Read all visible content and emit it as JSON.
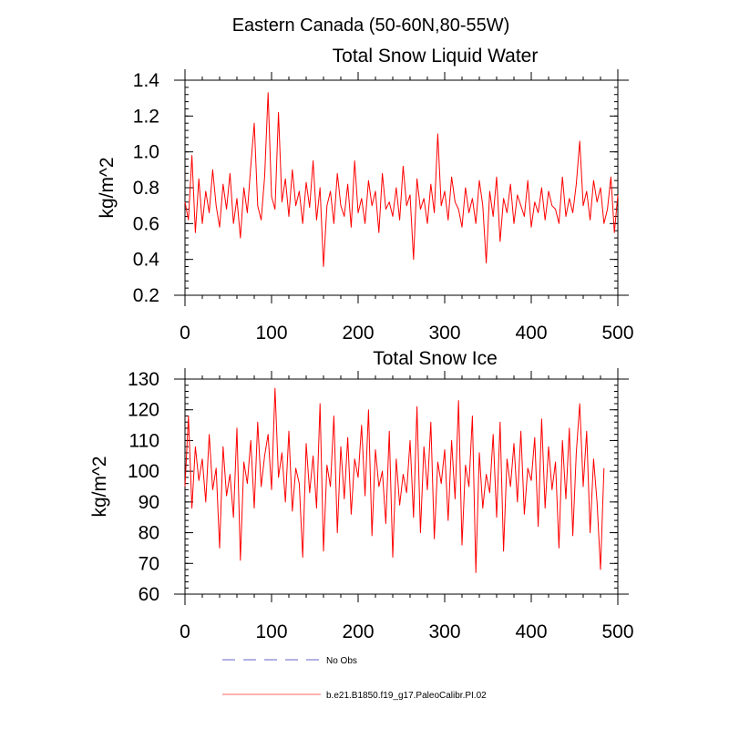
{
  "figure": {
    "main_title": "Eastern Canada (50-60N,80-55W)",
    "legend": [
      {
        "label": "No Obs",
        "color": "#9999dd",
        "style": "dashed"
      },
      {
        "label": "b.e21.B1850.f19_g17.PaleoCalibr.PI.02",
        "color": "#ff0000",
        "style": "solid"
      }
    ]
  },
  "chart_data": [
    {
      "type": "line",
      "title": "Total Snow Liquid Water",
      "xlabel": "",
      "ylabel": "kg/m^2",
      "xlim": [
        0,
        500
      ],
      "ylim": [
        0.2,
        1.4
      ],
      "xticks": [
        0,
        100,
        200,
        300,
        400,
        500
      ],
      "xtick_labels": [
        "0",
        "100",
        "200",
        "300",
        "400",
        "500"
      ],
      "yticks": [
        0.2,
        0.4,
        0.6,
        0.8,
        1.0,
        1.2,
        1.4
      ],
      "ytick_labels": [
        "0.2",
        "0.4",
        "0.6",
        "0.8",
        "1.0",
        "1.2",
        "1.4"
      ],
      "series": [
        {
          "name": "b.e21.B1850.f19_g17.PaleoCalibr.PI.02",
          "color": "#ff0000",
          "x_start": 0,
          "x_step": 4,
          "values": [
            0.72,
            0.62,
            0.98,
            0.55,
            0.85,
            0.6,
            0.78,
            0.66,
            0.9,
            0.7,
            0.58,
            0.82,
            0.68,
            0.88,
            0.6,
            0.74,
            0.52,
            0.8,
            0.66,
            0.92,
            1.16,
            0.7,
            0.62,
            0.86,
            1.33,
            0.75,
            0.68,
            1.22,
            0.72,
            0.85,
            0.64,
            0.9,
            0.7,
            0.78,
            0.6,
            0.83,
            0.69,
            0.95,
            0.62,
            0.8,
            0.36,
            0.7,
            0.78,
            0.6,
            0.88,
            0.7,
            0.64,
            0.82,
            0.58,
            0.95,
            0.66,
            0.74,
            0.6,
            0.84,
            0.7,
            0.78,
            0.55,
            0.88,
            0.68,
            0.72,
            0.64,
            0.8,
            0.62,
            0.92,
            0.7,
            0.76,
            0.4,
            0.85,
            0.68,
            0.74,
            0.6,
            0.82,
            0.66,
            1.1,
            0.7,
            0.78,
            0.62,
            0.86,
            0.72,
            0.68,
            0.58,
            0.8,
            0.66,
            0.74,
            0.6,
            0.84,
            0.7,
            0.38,
            0.78,
            0.64,
            0.86,
            0.5,
            0.74,
            0.66,
            0.82,
            0.6,
            0.76,
            0.7,
            0.64,
            0.84,
            0.58,
            0.72,
            0.66,
            0.8,
            0.62,
            0.78,
            0.7,
            0.68,
            0.6,
            0.86,
            0.64,
            0.74,
            0.66,
            0.82,
            1.06,
            0.7,
            0.78,
            0.62,
            0.84,
            0.72,
            0.8,
            0.6,
            0.68,
            0.86,
            0.55,
            0.76
          ]
        }
      ]
    },
    {
      "type": "line",
      "title": "Total Snow Ice",
      "xlabel": "",
      "ylabel": "kg/m^2",
      "xlim": [
        0,
        500
      ],
      "ylim": [
        60,
        130
      ],
      "xticks": [
        0,
        100,
        200,
        300,
        400,
        500
      ],
      "xtick_labels": [
        "0",
        "100",
        "200",
        "300",
        "400",
        "500"
      ],
      "yticks": [
        60,
        70,
        80,
        90,
        100,
        110,
        120,
        130
      ],
      "ytick_labels": [
        "60",
        "70",
        "80",
        "90",
        "100",
        "110",
        "120",
        "130"
      ],
      "series": [
        {
          "name": "b.e21.B1850.f19_g17.PaleoCalibr.PI.02",
          "color": "#ff0000",
          "x_start": 0,
          "x_step": 4,
          "values": [
            95,
            118,
            88,
            108,
            97,
            104,
            90,
            112,
            94,
            101,
            75,
            108,
            92,
            99,
            85,
            114,
            71,
            103,
            96,
            110,
            88,
            116,
            95,
            105,
            112,
            94,
            127,
            98,
            106,
            90,
            113,
            87,
            101,
            96,
            72,
            109,
            93,
            105,
            88,
            122,
            74,
            102,
            95,
            118,
            80,
            108,
            91,
            111,
            86,
            104,
            98,
            115,
            92,
            120,
            79,
            107,
            95,
            100,
            83,
            113,
            72,
            104,
            89,
            99,
            93,
            110,
            85,
            121,
            80,
            108,
            94,
            116,
            78,
            103,
            96,
            107,
            84,
            110,
            91,
            123,
            76,
            102,
            95,
            118,
            67,
            106,
            88,
            99,
            93,
            112,
            85,
            116,
            74,
            104,
            95,
            109,
            90,
            113,
            86,
            101,
            97,
            111,
            82,
            117,
            88,
            108,
            94,
            103,
            75,
            110,
            91,
            114,
            79,
            106,
            122,
            95,
            113,
            80,
            104,
            90,
            68,
            101
          ]
        }
      ]
    }
  ]
}
